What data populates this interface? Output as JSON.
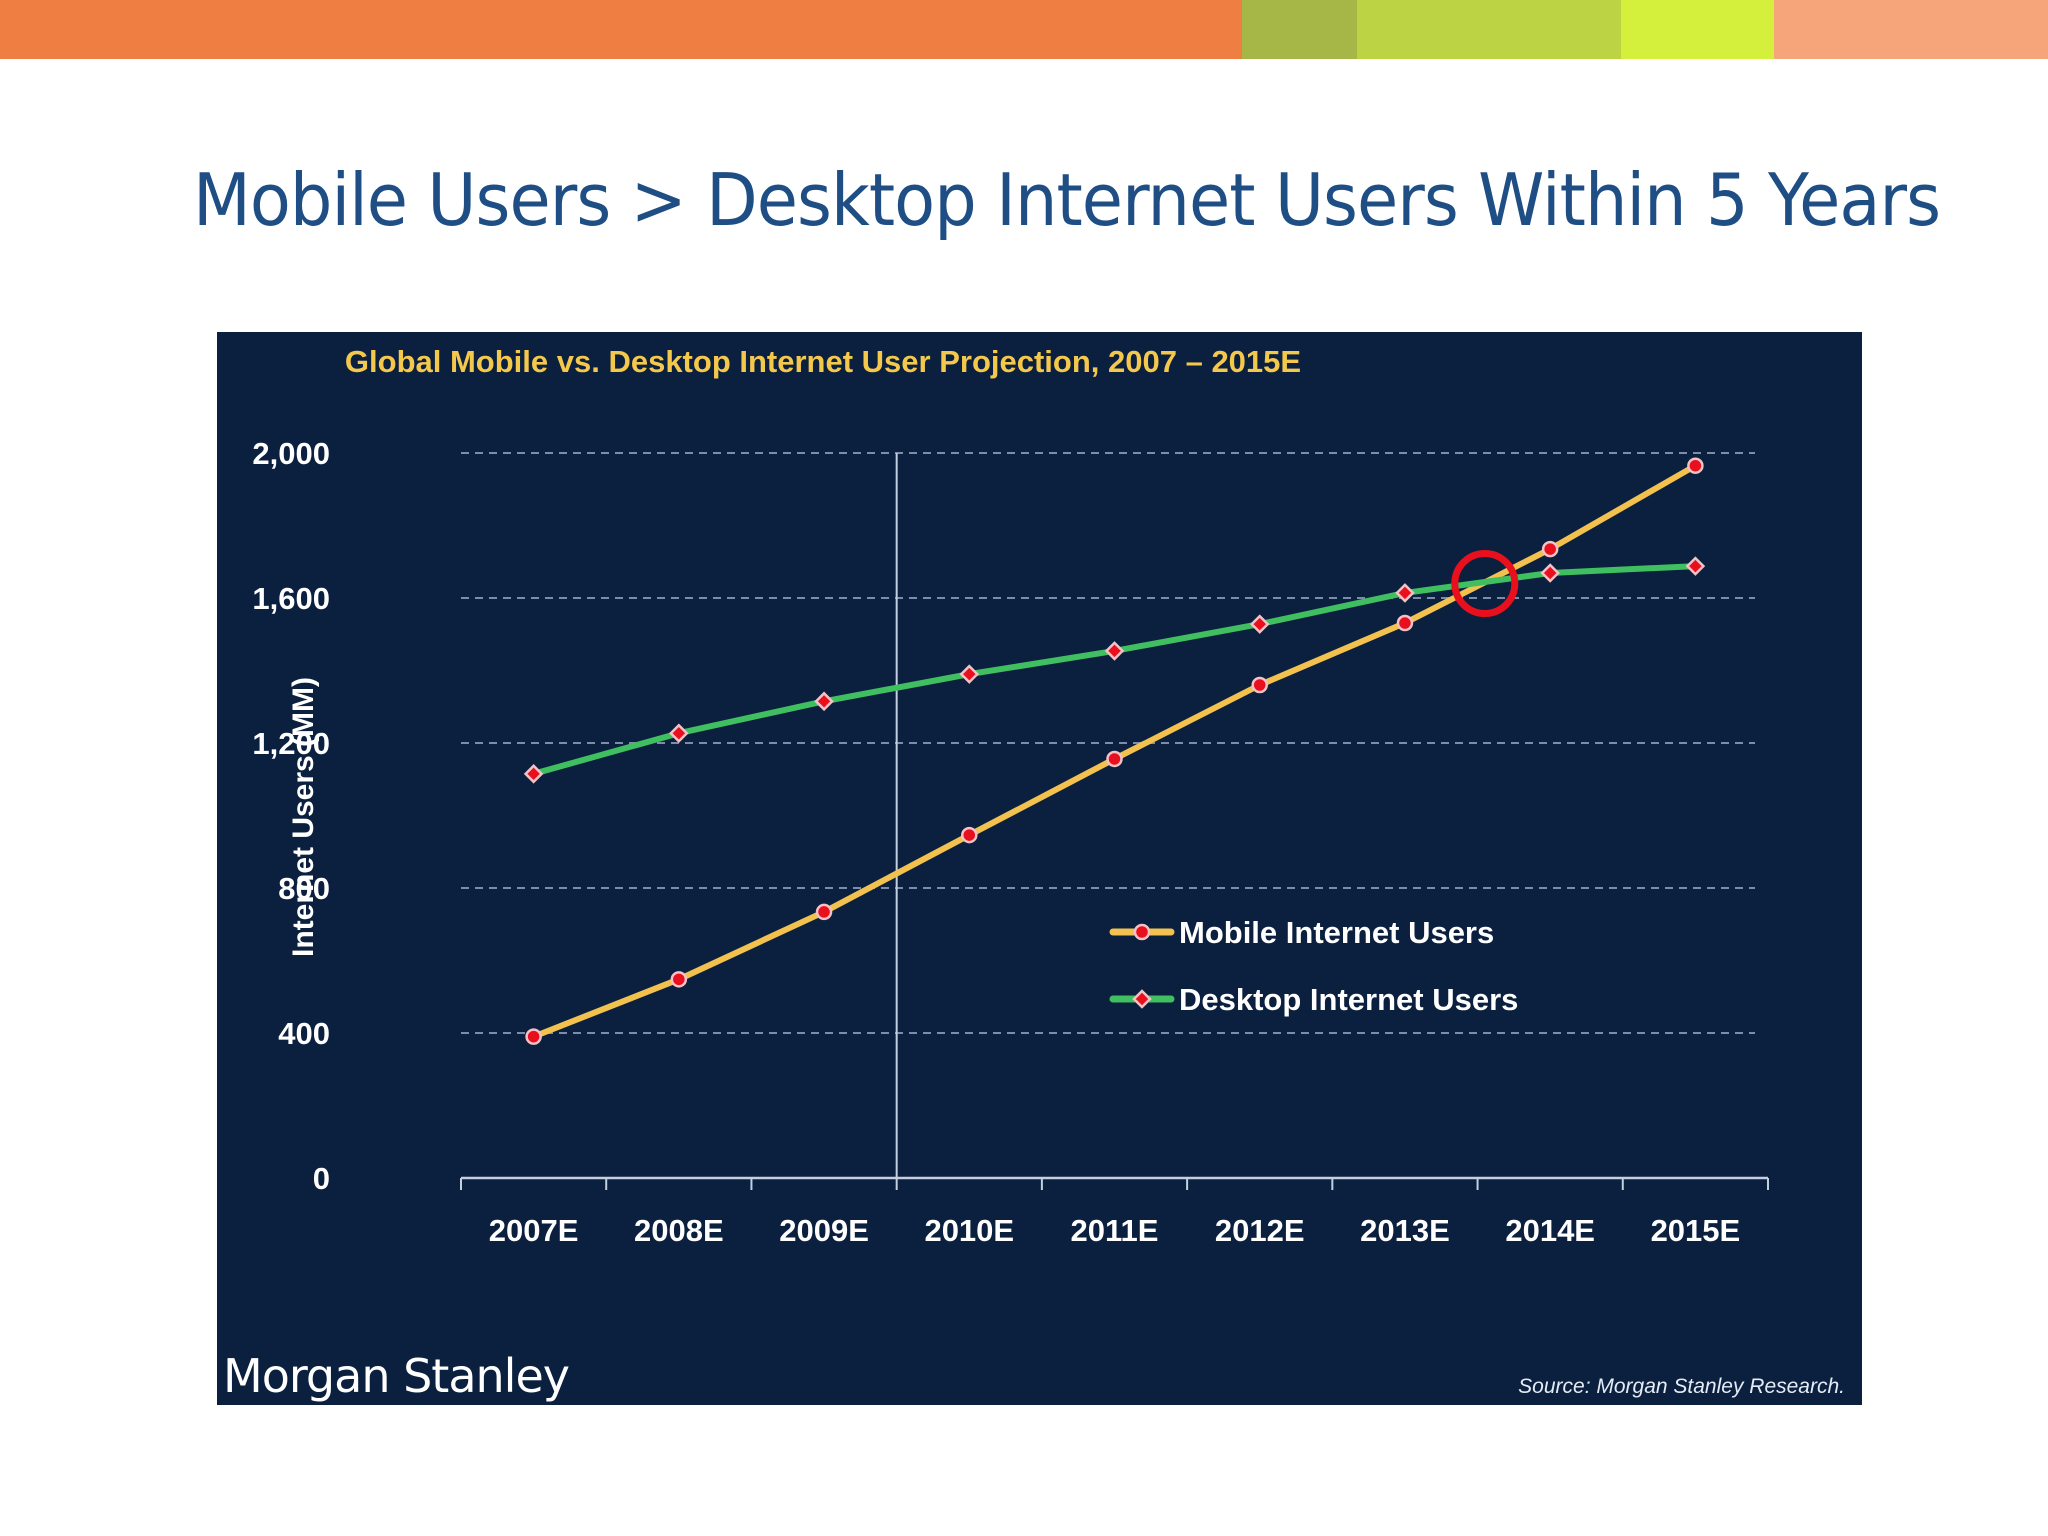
{
  "slide": {
    "title": "Mobile Users > Desktop Internet Users Within 5 Years",
    "title_color": "#1f4e85",
    "top_bar_colors": [
      "#ef7e42",
      "#a6b748",
      "#bcd444",
      "#d4f03c",
      "#f6a479"
    ]
  },
  "chart_data": {
    "type": "line",
    "title": "Global Mobile vs. Desktop Internet User Projection, 2007 – 2015E",
    "xlabel": "",
    "ylabel": "Internet Users (MM)",
    "categories": [
      "2007E",
      "2008E",
      "2009E",
      "2010E",
      "2011E",
      "2012E",
      "2013E",
      "2014E",
      "2015E"
    ],
    "ylim": [
      0,
      2000
    ],
    "yticks": [
      0,
      400,
      800,
      1200,
      1600,
      2000
    ],
    "ytick_labels": [
      "0",
      "400",
      "800",
      "1,200",
      "1,600",
      "2,000"
    ],
    "grid": true,
    "grid_style": "dashed horizontal",
    "divider_between": [
      "2009E",
      "2010E"
    ],
    "series": [
      {
        "name": "Mobile Internet Users",
        "color": "#f2c14e",
        "marker": "circle",
        "marker_color": "#e8101c",
        "values": [
          390,
          548,
          734,
          946,
          1156,
          1360,
          1531,
          1735,
          1965
        ]
      },
      {
        "name": "Desktop Internet Users",
        "color": "#3fbf5f",
        "marker": "diamond",
        "marker_color": "#e8101c",
        "values": [
          1115,
          1227,
          1315,
          1390,
          1454,
          1528,
          1614,
          1669,
          1688
        ]
      }
    ],
    "legend": {
      "placement": "center-right"
    },
    "annotations": [
      {
        "type": "circle-highlight",
        "color": "#e8101c",
        "between": [
          "2013E",
          "2014E"
        ],
        "value": 1640,
        "meaning": "crossover point"
      }
    ],
    "background": "#0b1f3f",
    "title_color": "#f4c84a"
  },
  "footer": {
    "brand": "Morgan Stanley",
    "source": "Source: Morgan Stanley Research."
  }
}
